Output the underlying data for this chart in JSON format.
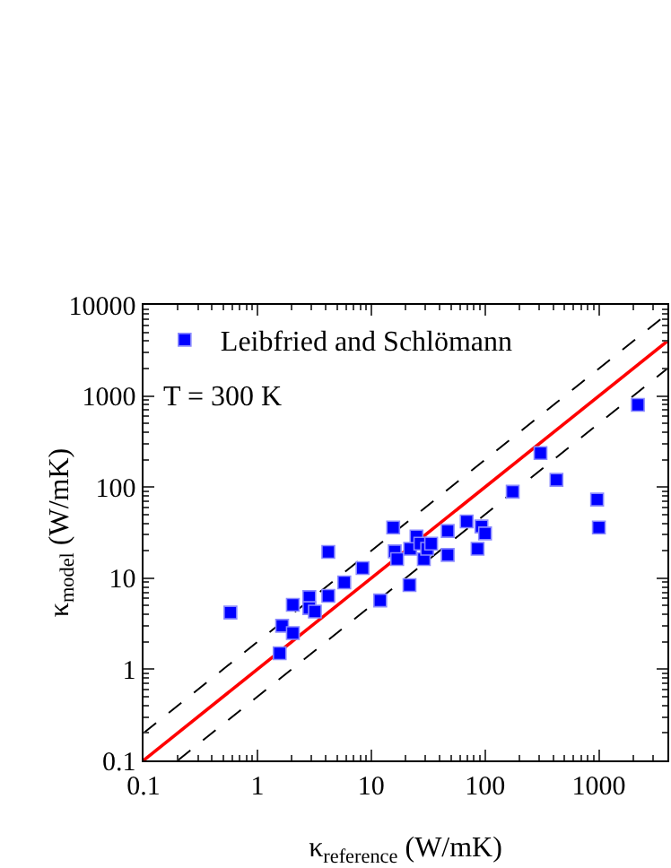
{
  "chart_data": {
    "type": "scatter",
    "xlabel": "κ$_{reference}$ (W/mK)",
    "ylabel": "κ$_{model}$ (W/mK)",
    "log": "xy",
    "xlim": [
      0.1,
      4000
    ],
    "ylim": [
      0.1,
      10000
    ],
    "xticks": [
      0.1,
      1,
      10,
      100,
      1000
    ],
    "yticks": [
      0.1,
      1,
      10,
      100,
      1000,
      10000
    ],
    "grid": false,
    "legend": "top left",
    "marker": "square",
    "annotations": [
      "T = 300 K"
    ],
    "series": [
      {
        "name": "Leibfried and Schlömann",
        "color": "#0000ff",
        "x": [
          0.58,
          1.57,
          1.65,
          2.05,
          2.05,
          2.86,
          2.86,
          3.2,
          4.2,
          4.2,
          5.8,
          8.4,
          12,
          15.6,
          16.1,
          16.9,
          21.7,
          22,
          25,
          27,
          29,
          31,
          33.6,
          47,
          47,
          69,
          86,
          93,
          100,
          175,
          307,
          424,
          965,
          1000,
          2200
        ],
        "values": [
          4.2,
          1.5,
          3.0,
          2.5,
          5.1,
          6.2,
          4.7,
          4.3,
          19.4,
          6.4,
          9.0,
          12.9,
          5.7,
          36,
          19.7,
          16.2,
          8.4,
          21,
          28.7,
          24,
          16.2,
          21,
          24,
          33,
          18,
          42,
          21,
          37,
          31,
          89,
          236,
          120,
          73,
          36,
          800
        ]
      },
      {
        "type": "line",
        "color": "#ff0000",
        "line_style": "solid",
        "marker": "none",
        "x": [
          0.1,
          4000
        ],
        "values": [
          0.1,
          4000
        ]
      },
      {
        "type": "line",
        "color": "#000000",
        "line_style": "dashed",
        "marker": "none",
        "x": [
          0.1,
          4000
        ],
        "values": [
          0.2,
          8000
        ]
      },
      {
        "type": "line",
        "color": "#000000",
        "line_style": "dashed",
        "marker": "none",
        "x": [
          0.2,
          4000
        ],
        "values": [
          0.1,
          2000
        ]
      }
    ]
  }
}
